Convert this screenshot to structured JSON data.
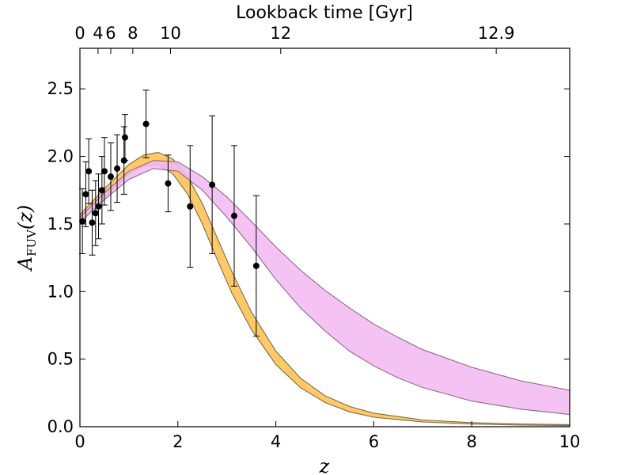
{
  "chart_data": {
    "type": "line",
    "xlabel": "z",
    "ylabel_main": "A",
    "ylabel_sub": "FUV",
    "ylabel_arg": "(z)",
    "top_axis_label": "Lookback time [Gyr]",
    "xlim": [
      0,
      10
    ],
    "ylim": [
      0,
      2.8
    ],
    "x_ticks": [
      0,
      2,
      4,
      6,
      8,
      10
    ],
    "x_tick_labels": [
      "0",
      "2",
      "4",
      "6",
      "8",
      "10"
    ],
    "y_ticks": [
      0.0,
      0.5,
      1.0,
      1.5,
      2.0,
      2.5
    ],
    "y_tick_labels": [
      "0.0",
      "0.5",
      "1.0",
      "1.5",
      "2.0",
      "2.5"
    ],
    "top_ticks": [
      {
        "label": "0",
        "z": 0.0
      },
      {
        "label": "4",
        "z": 0.37
      },
      {
        "label": "6",
        "z": 0.63
      },
      {
        "label": "8",
        "z": 1.08
      },
      {
        "label": "10",
        "z": 1.85
      },
      {
        "label": "12",
        "z": 4.1
      },
      {
        "label": "12.9",
        "z": 8.5
      }
    ],
    "colors": {
      "orange_fill": "#ffc966",
      "orange_edge": "#7a6a4a",
      "pink_fill": "#f2b8f2",
      "pink_edge": "#8a6a8a",
      "overlap_fill": "#f7a0b0",
      "points": "#000000"
    },
    "series": [
      {
        "name": "orange band",
        "x": [
          0,
          0.5,
          1.0,
          1.3,
          1.6,
          1.9,
          2.2,
          2.5,
          2.8,
          3.1,
          3.5,
          4.0,
          4.5,
          5.0,
          5.5,
          6.0,
          7.0,
          8.0,
          9.0,
          10.0
        ],
        "upper": [
          1.57,
          1.76,
          1.94,
          2.01,
          2.03,
          1.98,
          1.85,
          1.65,
          1.4,
          1.15,
          0.85,
          0.56,
          0.36,
          0.23,
          0.15,
          0.1,
          0.05,
          0.03,
          0.02,
          0.015
        ],
        "lower": [
          1.52,
          1.7,
          1.87,
          1.93,
          1.94,
          1.87,
          1.72,
          1.5,
          1.24,
          0.99,
          0.72,
          0.46,
          0.29,
          0.18,
          0.11,
          0.07,
          0.035,
          0.02,
          0.012,
          0.008
        ]
      },
      {
        "name": "pink band",
        "x": [
          0,
          0.5,
          1.0,
          1.5,
          2.0,
          2.5,
          3.0,
          3.5,
          4.0,
          4.5,
          5.0,
          5.5,
          6.0,
          6.5,
          7.0,
          8.0,
          9.0,
          10.0
        ],
        "upper": [
          1.55,
          1.73,
          1.89,
          1.97,
          1.96,
          1.85,
          1.7,
          1.52,
          1.33,
          1.16,
          1.01,
          0.88,
          0.76,
          0.66,
          0.57,
          0.44,
          0.34,
          0.27
        ],
        "lower": [
          1.51,
          1.68,
          1.83,
          1.91,
          1.89,
          1.75,
          1.55,
          1.33,
          1.09,
          0.88,
          0.71,
          0.56,
          0.45,
          0.36,
          0.29,
          0.19,
          0.13,
          0.09
        ]
      }
    ],
    "points": [
      {
        "x": 0.05,
        "y": 1.52,
        "yerr": 0.24
      },
      {
        "x": 0.12,
        "y": 1.72,
        "yerr": 0.24
      },
      {
        "x": 0.18,
        "y": 1.89,
        "yerr": 0.24
      },
      {
        "x": 0.25,
        "y": 1.51,
        "yerr": 0.24
      },
      {
        "x": 0.32,
        "y": 1.58,
        "yerr": 0.24
      },
      {
        "x": 0.38,
        "y": 1.63,
        "yerr": 0.24
      },
      {
        "x": 0.45,
        "y": 1.75,
        "yerr": 0.25
      },
      {
        "x": 0.5,
        "y": 1.89,
        "yerr": 0.25
      },
      {
        "x": 0.63,
        "y": 1.85,
        "yerr": 0.25
      },
      {
        "x": 0.76,
        "y": 1.91,
        "yerr": 0.25
      },
      {
        "x": 0.9,
        "y": 1.97,
        "yerr": 0.25
      },
      {
        "x": 0.92,
        "y": 2.14,
        "yerr": 0.17
      },
      {
        "x": 1.35,
        "y": 2.24,
        "yerr": 0.25
      },
      {
        "x": 1.8,
        "y": 1.8,
        "yerr": 0.21
      },
      {
        "x": 2.25,
        "y": 1.63,
        "yerr": 0.45
      },
      {
        "x": 2.7,
        "y": 1.79,
        "yerr": 0.51
      },
      {
        "x": 3.15,
        "y": 1.56,
        "yerr": 0.52
      },
      {
        "x": 3.6,
        "y": 1.19,
        "yerr": 0.52
      }
    ]
  }
}
